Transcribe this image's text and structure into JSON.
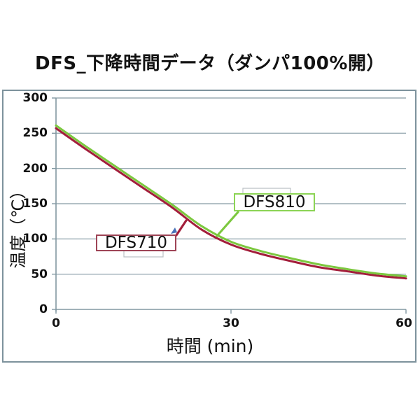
{
  "title": "DFS_下降時間データ（ダンパ100%開）",
  "chart_data": {
    "type": "line",
    "title": "DFS_下降時間データ（ダンパ100%開）",
    "xlabel": "時間 (min)",
    "ylabel": "温度（℃）",
    "xlim": [
      0,
      60
    ],
    "ylim": [
      0,
      300
    ],
    "x_ticks": [
      0,
      30,
      60
    ],
    "y_ticks": [
      0,
      50,
      100,
      150,
      200,
      250,
      300
    ],
    "grid": true,
    "legend_position": "none",
    "x": [
      0,
      5,
      10,
      15,
      20,
      25,
      30,
      35,
      40,
      45,
      50,
      55,
      60
    ],
    "series": [
      {
        "name": "DFS710",
        "color": "#A31E3B",
        "values": [
          257,
          228,
          200,
          172,
          144,
          113,
          92,
          79,
          69,
          60,
          54,
          48,
          44
        ]
      },
      {
        "name": "DFS810",
        "color": "#7CC83F",
        "values": [
          261,
          232,
          204,
          176,
          148,
          118,
          96,
          83,
          73,
          64,
          57,
          51,
          47
        ]
      }
    ],
    "annotations": [
      {
        "label": "DFS810",
        "border_color": "#8CD455"
      },
      {
        "label": "DFS710",
        "border_color": "#9E4456"
      }
    ]
  },
  "colors": {
    "grid_line": "#9AACB4",
    "axis_line": "#8298A2",
    "outer_border": "#7D929C",
    "bracket_gray": "#BCC1C5",
    "marker_blue": "#4A72B8",
    "text": "#111111"
  }
}
